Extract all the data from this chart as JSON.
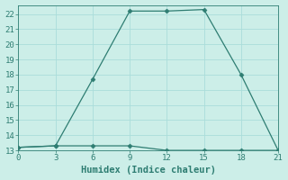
{
  "line1_x": [
    0,
    3,
    6,
    9,
    12,
    15,
    18,
    21
  ],
  "line1_y": [
    13.2,
    13.3,
    17.7,
    22.2,
    22.2,
    22.3,
    18.0,
    13.0
  ],
  "line2_x": [
    0,
    3,
    6,
    9,
    12,
    15,
    18,
    21
  ],
  "line2_y": [
    13.2,
    13.3,
    13.3,
    13.3,
    13.0,
    13.0,
    13.0,
    13.0
  ],
  "line_color": "#2e7d72",
  "bg_color": "#cceee8",
  "grid_color": "#aaddda",
  "xlabel": "Humidex (Indice chaleur)",
  "xlim": [
    0,
    21
  ],
  "ylim": [
    13,
    22.6
  ],
  "xticks": [
    0,
    3,
    6,
    9,
    12,
    15,
    18,
    21
  ],
  "yticks": [
    13,
    14,
    15,
    16,
    17,
    18,
    19,
    20,
    21,
    22
  ],
  "tick_fontsize": 6.5,
  "xlabel_fontsize": 7.5
}
